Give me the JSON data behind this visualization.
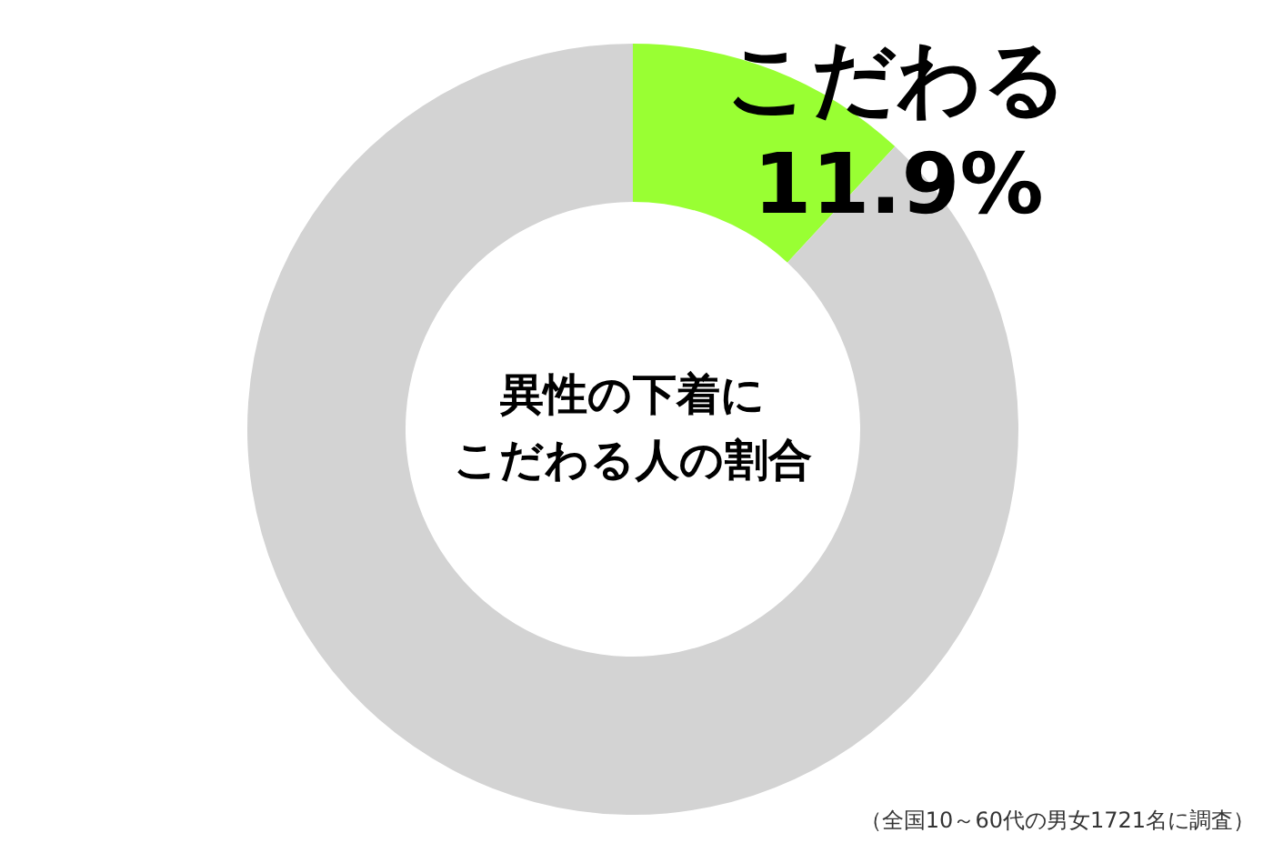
{
  "chart_data": {
    "type": "donut",
    "title": "異性の下着に",
    "subtitle": "こだわる人の割合",
    "categories": [
      "こだわる",
      null
    ],
    "values": [
      11.9,
      88.1
    ],
    "value_labels": [
      "11.9%",
      null
    ],
    "colors": [
      "#99ff33",
      "#d3d3d3"
    ],
    "annotations": [
      "（全国10～60代の男女1721名に調査）"
    ]
  }
}
